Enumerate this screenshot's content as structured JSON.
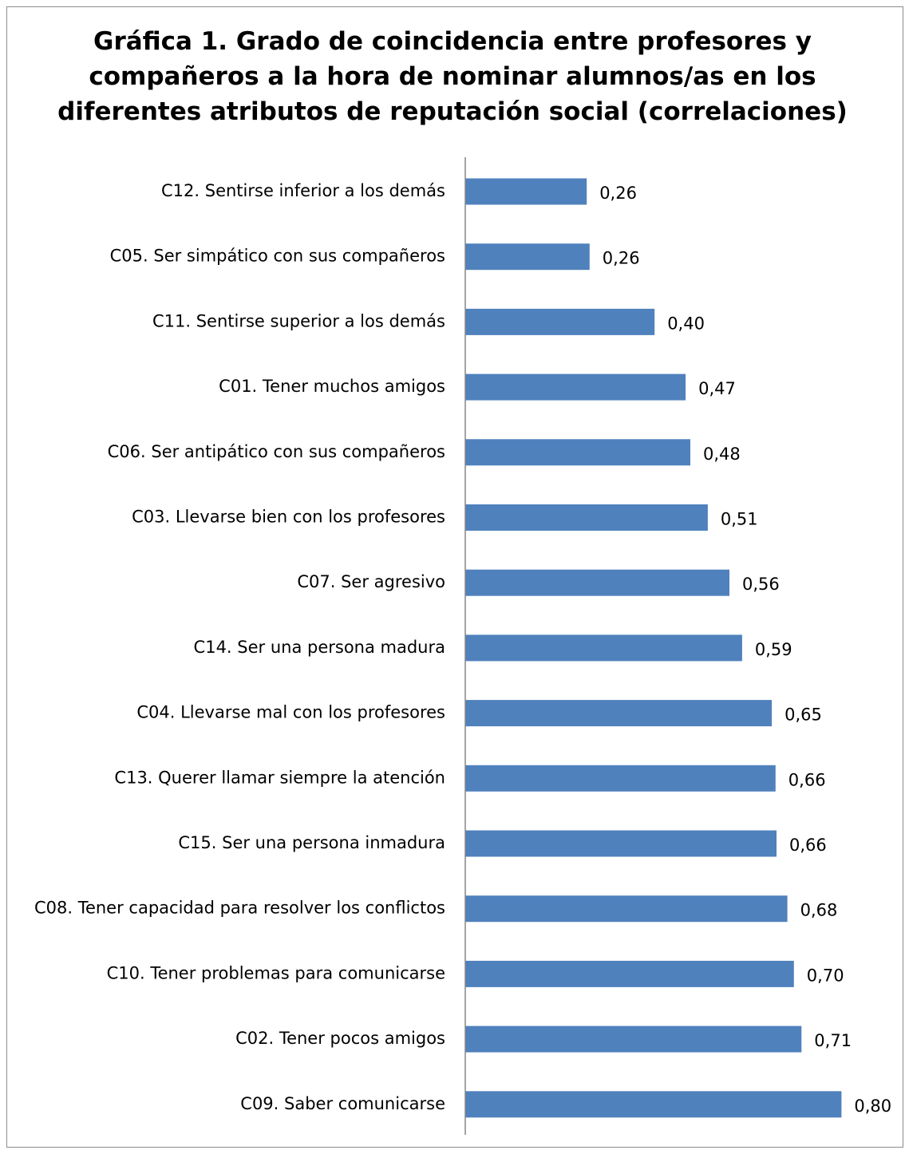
{
  "chart_data": {
    "type": "bar",
    "orientation": "horizontal",
    "title_lines": [
      "Gráfica 1. Grado de coincidencia entre profesores y",
      "compañeros a la hora de nominar alumnos/as en los",
      "diferentes atributos de reputación social (correlaciones)"
    ],
    "categories": [
      "C12. Sentirse inferior a los demás",
      "C05. Ser simpático con sus compañeros",
      "C11. Sentirse superior a los demás",
      "C01. Tener muchos amigos",
      "C06. Ser antipático con sus compañeros",
      "C03. Llevarse bien con los profesores",
      "C07. Ser agresivo",
      "C14. Ser una persona madura",
      "C04. Llevarse mal con los profesores",
      "C13. Querer llamar siempre la atención",
      "C15. Ser una persona inmadura",
      "C08. Tener capacidad para resolver los conflictos",
      "C10. Tener problemas para comunicarse",
      "C02. Tener pocos amigos",
      "C09. Saber comunicarse"
    ],
    "values": [
      0.258,
      0.264,
      0.402,
      0.468,
      0.478,
      0.515,
      0.561,
      0.588,
      0.651,
      0.659,
      0.661,
      0.684,
      0.698,
      0.714,
      0.799
    ],
    "value_labels": [
      "0,26",
      "0,26",
      "0,40",
      "0,47",
      "0,48",
      "0,51",
      "0,56",
      "0,59",
      "0,65",
      "0,66",
      "0,66",
      "0,68",
      "0,70",
      "0,71",
      "0,80"
    ],
    "xlim": [
      0,
      0.9
    ],
    "grid": false,
    "legend": "none",
    "bar_color": "#4f81bd",
    "axis_color": "#868686"
  }
}
